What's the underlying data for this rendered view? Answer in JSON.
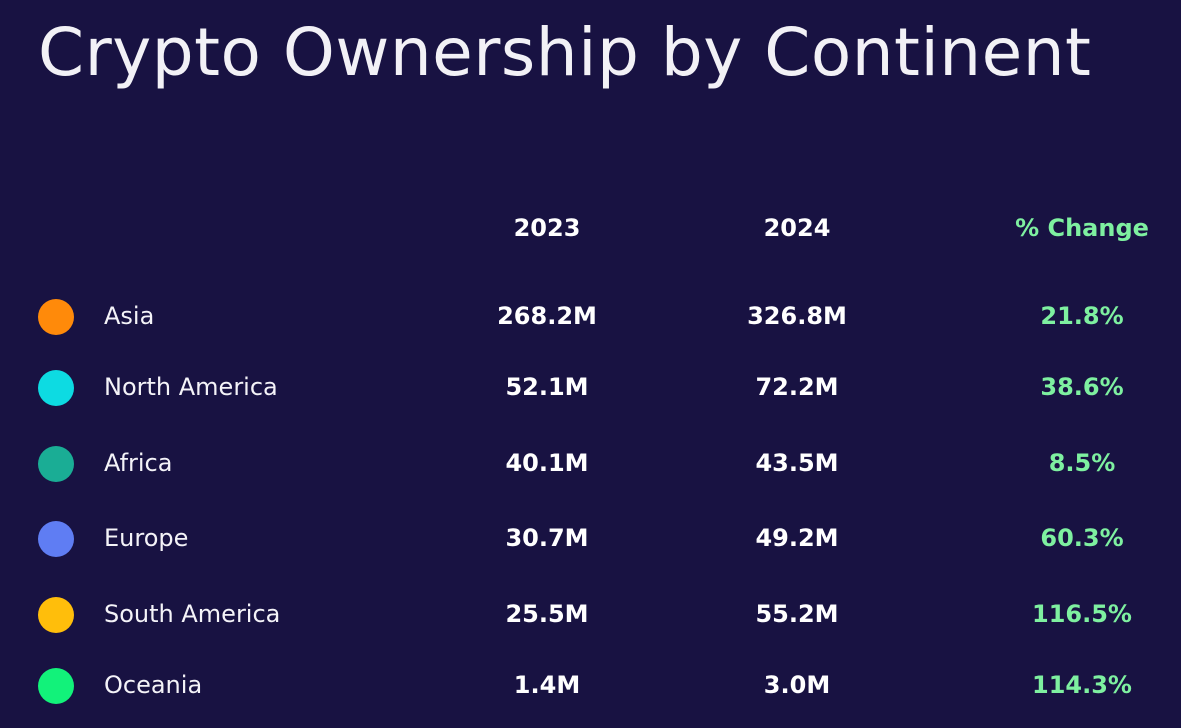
{
  "chart_data": {
    "type": "table",
    "title": "Crypto Ownership by Continent",
    "columns": [
      "2023",
      "2024",
      "% Change"
    ],
    "rows": [
      {
        "continent": "Asia",
        "y2023": "268.2M",
        "y2024": "326.8M",
        "change": "21.8%",
        "color": "#ff8a0a"
      },
      {
        "continent": "North America",
        "y2023": "52.1M",
        "y2024": "72.2M",
        "change": "38.6%",
        "color": "#0ddbe2"
      },
      {
        "continent": "Africa",
        "y2023": "40.1M",
        "y2024": "43.5M",
        "change": "8.5%",
        "color": "#1aad95"
      },
      {
        "continent": "Europe",
        "y2023": "30.7M",
        "y2024": "49.2M",
        "change": "60.3%",
        "color": "#5f7df3"
      },
      {
        "continent": "South America",
        "y2023": "25.5M",
        "y2024": "55.2M",
        "change": "116.5%",
        "color": "#ffbe0b"
      },
      {
        "continent": "Oceania",
        "y2023": "1.4M",
        "y2024": "3.0M",
        "change": "114.3%",
        "color": "#12f27a"
      }
    ]
  },
  "colors": {
    "background": "#181242",
    "text": "#ffffff",
    "change_accent": "#7ef0a0"
  }
}
